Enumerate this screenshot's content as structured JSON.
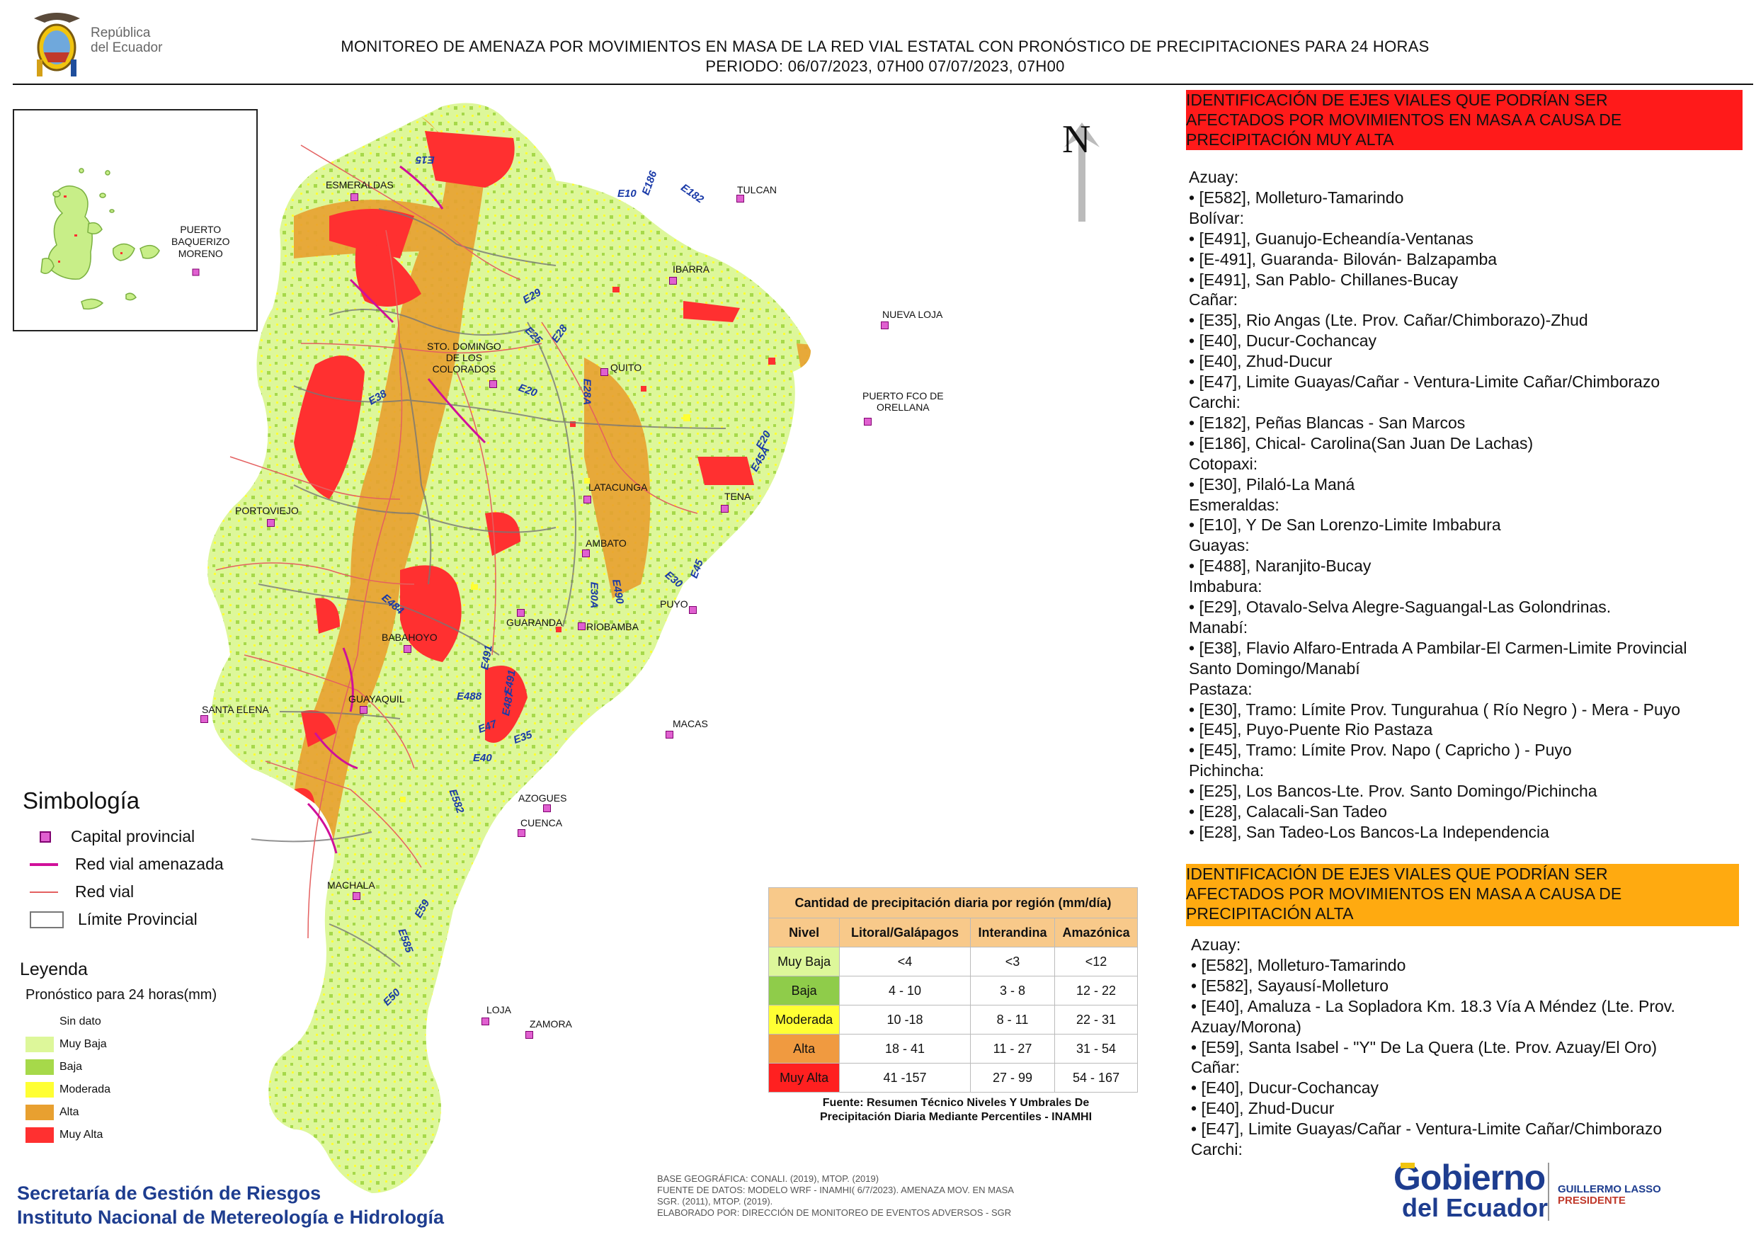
{
  "header": {
    "line1": "MONITOREO DE AMENAZA POR MOVIMIENTOS EN MASA DE LA RED VIAL  ESTATAL  CON PRONÓSTICO  DE  PRECIPITACIONES PARA 24 HORAS",
    "line2": "PERIODO: 06/07/2023, 07H00 07/07/2023, 07H00",
    "gov_left_line1": "República",
    "gov_left_line2": "del Ecuador"
  },
  "north": "N",
  "inset": {
    "city_line1": "PUERTO",
    "city_line2": "BAQUERIZO",
    "city_line3": "MORENO"
  },
  "cities": {
    "esmeraldas": "ESMERALDAS",
    "tulcan": "TULCAN",
    "ibarra": "IBARRA",
    "nueva_loja": "NUEVA LOJA",
    "sto_domingo1": "STO. DOMINGO",
    "sto_domingo2": "DE LOS",
    "sto_domingo3": "COLORADOS",
    "quito": "QUITO",
    "orellana1": "PUERTO FCO DE",
    "orellana2": "ORELLANA",
    "portoviejo": "PORTOVIEJO",
    "latacunga": "LATACUNGA",
    "tena": "TENA",
    "ambato": "AMBATO",
    "puyo": "PUYO",
    "guaranda": "GUARANDA",
    "riobamba": "RIOBAMBA",
    "babahoyo": "BABAHOYO",
    "santa_elena": "SANTA ELENA",
    "guayaquil": "GUAYAQUIL",
    "macas": "MACAS",
    "azogues": "AZOGUES",
    "cuenca": "CUENCA",
    "machala": "MACHALA",
    "loja": "LOJA",
    "zamora": "ZAMORA"
  },
  "roads": {
    "e15": "E15",
    "e186": "E186",
    "e10": "E10",
    "e182": "E182",
    "e29": "E29",
    "e25": "E25",
    "e28": "E28",
    "e38": "E38",
    "e20a": "E20",
    "e28a": "E28A",
    "e20b": "E20",
    "e45a": "E45A",
    "e45": "E45",
    "e30": "E30",
    "e304": "E30A",
    "e490": "E490",
    "e484": "E484",
    "e491": "E491",
    "e491b": "E491",
    "e487": "E487",
    "e488": "E488",
    "e47": "E47",
    "e35": "E35",
    "e40": "E40",
    "e582": "E582",
    "e59": "E59",
    "e585": "E585",
    "e50": "E50"
  },
  "simbologia": {
    "title": "Simbología",
    "capital": "Capital provincial",
    "red_amenazada": "Red vial amenazada",
    "red_vial": "Red vial",
    "limite": "Límite Provincial"
  },
  "leyenda": {
    "title": "Leyenda",
    "subtitle": "Pronóstico para 24 horas(mm)",
    "items": [
      {
        "label": "Sin dato",
        "color": "#ffffff"
      },
      {
        "label": "Muy Baja",
        "color": "#ddf79a"
      },
      {
        "label": "Baja",
        "color": "#a6d94a"
      },
      {
        "label": "Moderada",
        "color": "#ffff33"
      },
      {
        "label": "Alta",
        "color": "#e8a030"
      },
      {
        "label": "Muy Alta",
        "color": "#ff3030"
      }
    ]
  },
  "precip_table": {
    "title": "Cantidad de precipitación diaria por región (mm/día)",
    "headers": [
      "Nivel",
      "Litoral/Galápagos",
      "Interandina",
      "Amazónica"
    ],
    "rows": [
      {
        "nivel": "Muy Baja",
        "color": "#ddf79a",
        "lit": "<4",
        "int": "<3",
        "ama": "<12"
      },
      {
        "nivel": "Baja",
        "color": "#8fcc4a",
        "lit": "4 - 10",
        "int": "3 - 8",
        "ama": "12 - 22"
      },
      {
        "nivel": "Moderada",
        "color": "#ffff33",
        "lit": "10 -18",
        "int": "8 - 11",
        "ama": "22 - 31"
      },
      {
        "nivel": "Alta",
        "color": "#f09a40",
        "lit": "18 - 41",
        "int": "11 - 27",
        "ama": "31 - 54"
      },
      {
        "nivel": "Muy Alta",
        "color": "#ff2020",
        "lit": "41 -157",
        "int": "27 - 99",
        "ama": "54 - 167"
      }
    ],
    "source_line1": "Fuente: Resumen Técnico Niveles Y Umbrales De",
    "source_line2": "Precipitación Diaria Mediante Percentiles - INAMHI"
  },
  "base_info": {
    "line1": "BASE GEOGRÁFICA: CONALI. (2019), MTOP. (2019)",
    "line2": "FUENTE DE DATOS: MODELO WRF - INAMHI( 6/7/2023).  AMENAZA MOV. EN MASA",
    "line3": "SGR. (2011), MTOP. (2019).",
    "line4": "ELABORADO POR: DIRECCIÓN DE MONITOREO DE EVENTOS ADVERSOS - SGR"
  },
  "footer": {
    "sgr1": "Secretaría de Gestión de Riesgos",
    "sgr2": "Instituto Nacional de Metereología e Hidrología",
    "gob1": "Gobierno",
    "gob2": "del Ecuador",
    "pres1": "GUILLERMO LASSO",
    "pres2": "PRESIDENTE"
  },
  "muy_alta_panel": {
    "title1": "IDENTIFICACIÓN DE EJES VIALES QUE PODRÍAN SER",
    "title2": "AFECTADOS POR MOVIMIENTOS EN MASA A CAUSA DE",
    "title3": "PRECIPITACIÓN MUY ALTA",
    "lines": [
      "Azuay:",
      "• [E582], Molleturo-Tamarindo",
      "Bolívar:",
      "• [E491], Guanujo-Echeandía-Ventanas",
      "• [E-491], Guaranda- Bilován- Balzapamba",
      "• [E491], San Pablo- Chillanes-Bucay",
      "Cañar:",
      "• [E35], Rio Angas (Lte. Prov. Cañar/Chimborazo)-Zhud",
      "• [E40], Ducur-Cochancay",
      "• [E40], Zhud-Ducur",
      "• [E47], Limite Guayas/Cañar - Ventura-Limite Cañar/Chimborazo",
      "Carchi:",
      "• [E182], Peñas Blancas - San Marcos",
      "• [E186], Chical- Carolina(San Juan De Lachas)",
      "Cotopaxi:",
      "• [E30], Pilaló-La Maná",
      "Esmeraldas:",
      "• [E10], Y De San Lorenzo-Limite Imbabura",
      "Guayas:",
      "• [E488], Naranjito-Bucay",
      "Imbabura:",
      "• [E29], Otavalo-Selva Alegre-Saguangal-Las Golondrinas.",
      "Manabí:",
      "• [E38], Flavio Alfaro-Entrada A Pambilar-El Carmen-Limite Provincial",
      "Santo Domingo/Manabí",
      "Pastaza:",
      "• [E30], Tramo: Límite Prov. Tungurahua ( Río Negro ) - Mera - Puyo",
      "• [E45], Puyo-Puente Rio Pastaza",
      "• [E45], Tramo: Límite Prov. Napo ( Capricho ) - Puyo",
      "Pichincha:",
      "• [E25], Los Bancos-Lte. Prov. Santo Domingo/Pichincha",
      "• [E28], Calacali-San Tadeo",
      "• [E28], San Tadeo-Los Bancos-La Independencia"
    ]
  },
  "alta_panel": {
    "title1": "IDENTIFICACIÓN DE EJES VIALES QUE PODRÍAN SER",
    "title2": "AFECTADOS POR MOVIMIENTOS EN MASA A CAUSA DE",
    "title3": "PRECIPITACIÓN  ALTA",
    "lines": [
      "Azuay:",
      "• [E582], Molleturo-Tamarindo",
      "• [E582], Sayausí-Molleturo",
      "• [E40], Amaluza - La Sopladora Km. 18.3 Vía A Méndez (Lte. Prov.",
      "Azuay/Morona)",
      "• [E59], Santa Isabel - \"Y\" De La Quera (Lte. Prov. Azuay/El Oro)",
      "Cañar:",
      "• [E40], Ducur-Cochancay",
      "• [E40], Zhud-Ducur",
      "• [E47], Limite Guayas/Cañar - Ventura-Limite Cañar/Chimborazo",
      "Carchi:"
    ]
  }
}
